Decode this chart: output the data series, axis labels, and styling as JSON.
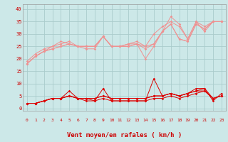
{
  "background_color": "#cce8e8",
  "grid_color": "#aacccc",
  "xlabel": "Vent moyen/en rafales ( km/h )",
  "xlabel_color": "#cc0000",
  "tick_color": "#cc0000",
  "x_ticks": [
    0,
    1,
    2,
    3,
    4,
    5,
    6,
    7,
    8,
    9,
    10,
    11,
    12,
    13,
    14,
    15,
    16,
    17,
    18,
    19,
    20,
    21,
    22,
    23
  ],
  "ylim": [
    -1,
    42
  ],
  "yticks": [
    0,
    5,
    10,
    15,
    20,
    25,
    30,
    35,
    40
  ],
  "line1": [
    18,
    21,
    23,
    25,
    27,
    26,
    25,
    25,
    25,
    29,
    25,
    25,
    26,
    26,
    20,
    25,
    31,
    37,
    34,
    28,
    35,
    31,
    35,
    35
  ],
  "line2": [
    19,
    22,
    24,
    25,
    26,
    27,
    25,
    25,
    25,
    29,
    25,
    25,
    26,
    27,
    25,
    30,
    33,
    35,
    33,
    28,
    35,
    33,
    35,
    35
  ],
  "line3": [
    18,
    21,
    23,
    24,
    25,
    26,
    25,
    24,
    24,
    29,
    25,
    25,
    25,
    26,
    25,
    26,
    31,
    34,
    28,
    27,
    34,
    32,
    35,
    35
  ],
  "line4": [
    18,
    21,
    23,
    24,
    25,
    26,
    25,
    25,
    25,
    29,
    25,
    25,
    25,
    26,
    24,
    26,
    31,
    34,
    28,
    27,
    34,
    32,
    35,
    35
  ],
  "low1": [
    2,
    2,
    3,
    4,
    4,
    7,
    4,
    4,
    3,
    8,
    3,
    3,
    3,
    3,
    3,
    12,
    5,
    6,
    5,
    6,
    8,
    8,
    3,
    6
  ],
  "low2": [
    2,
    2,
    3,
    4,
    4,
    5,
    4,
    4,
    4,
    5,
    4,
    4,
    4,
    4,
    4,
    5,
    5,
    6,
    5,
    6,
    7,
    8,
    4,
    5
  ],
  "low3": [
    2,
    2,
    3,
    4,
    4,
    5,
    4,
    4,
    4,
    5,
    4,
    4,
    4,
    4,
    4,
    5,
    5,
    6,
    5,
    6,
    7,
    7,
    4,
    5
  ],
  "low4": [
    2,
    2,
    3,
    4,
    4,
    5,
    4,
    3,
    3,
    4,
    3,
    3,
    3,
    3,
    3,
    4,
    4,
    5,
    4,
    5,
    6,
    7,
    4,
    5
  ],
  "color_high": "#f09090",
  "color_low": "#dd0000",
  "arrow_chars": [
    "↗",
    "→",
    "↑",
    "→",
    "↗",
    "↑",
    "↗",
    "→",
    "→",
    "→",
    "→",
    "→",
    "→",
    "→",
    "→",
    "↗",
    "↗",
    "→",
    "↗",
    "→",
    "→",
    "→",
    "→",
    "↘"
  ]
}
